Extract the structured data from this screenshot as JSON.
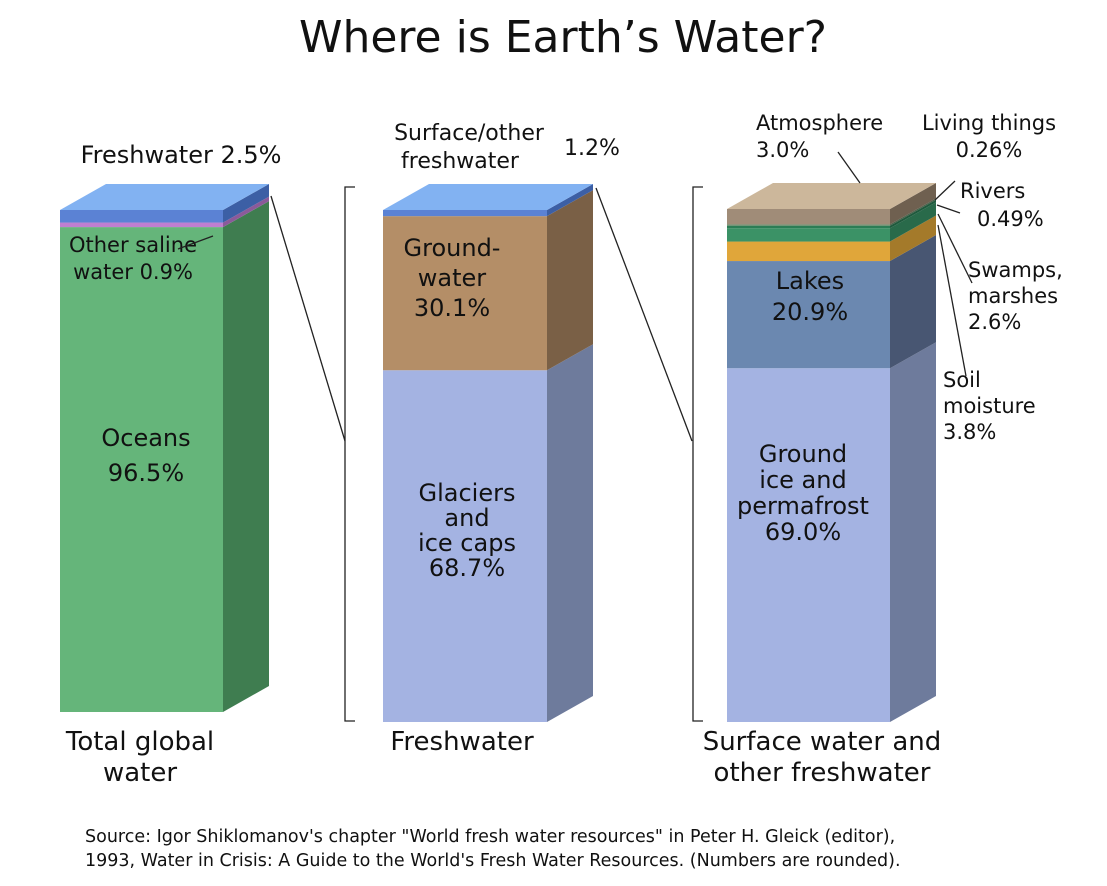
{
  "chart_data": {
    "type": "bar",
    "title": "Where is Earth’s Water?",
    "grid": false,
    "stacks": [
      {
        "id": "total",
        "xlabel_lines": [
          "Total global",
          "water"
        ],
        "segments": [
          {
            "name": "Oceans",
            "value": 96.5,
            "color": "#65b57a",
            "side": "#3f7d50",
            "top": "#86d39b",
            "label_lines": [
              "Oceans",
              "96.5%"
            ]
          },
          {
            "name": "Other saline water",
            "value": 0.9,
            "color": "#bf7fd0",
            "side": "#8b5a9a",
            "top": "#d9a6e6",
            "label_lines": [
              "Other saline",
              "water 0.9%"
            ]
          },
          {
            "name": "Freshwater",
            "value": 2.5,
            "color": "#5b82d4",
            "side": "#3c5fa5",
            "top": "#82b2f2",
            "label_lines": [
              "Freshwater 2.5%"
            ]
          }
        ]
      },
      {
        "id": "fresh",
        "xlabel_lines": [
          "Freshwater"
        ],
        "segments": [
          {
            "name": "Glaciers and ice caps",
            "value": 68.7,
            "color": "#a4b3e2",
            "side": "#6e7b9c",
            "top": "#c2ccee",
            "label_lines": [
              "Glaciers",
              "and",
              "ice caps",
              "68.7%"
            ]
          },
          {
            "name": "Ground-water",
            "value": 30.1,
            "color": "#b48e67",
            "side": "#7a6046",
            "top": "#c9a684",
            "label_lines": [
              "Ground-",
              "water",
              "30.1%"
            ]
          },
          {
            "name": "Surface/other freshwater",
            "value": 1.2,
            "color": "#5b82d4",
            "side": "#3c5fa5",
            "top": "#82b2f2",
            "label_lines": [
              "Surface/other",
              "freshwater",
              "1.2%"
            ]
          }
        ]
      },
      {
        "id": "surface",
        "xlabel_lines": [
          "Surface water and",
          "other freshwater"
        ],
        "segments": [
          {
            "name": "Ground ice and permafrost",
            "value": 69.0,
            "color": "#a4b3e2",
            "side": "#6e7b9c",
            "top": "#c2ccee",
            "label_lines": [
              "Ground",
              "ice and",
              "permafrost",
              "69.0%"
            ]
          },
          {
            "name": "Lakes",
            "value": 20.9,
            "color": "#6b88b0",
            "side": "#485672",
            "top": "#8aa4c8",
            "label_lines": [
              "Lakes",
              "20.9%"
            ]
          },
          {
            "name": "Soil moisture",
            "value": 3.8,
            "color": "#e0a63a",
            "side": "#a47a2a",
            "top": "#efc066",
            "label_lines": [
              "Soil",
              "moisture",
              "3.8%"
            ]
          },
          {
            "name": "Swamps, marshes",
            "value": 2.6,
            "color": "#3b9266",
            "side": "#296a4a",
            "top": "#5cb087",
            "label_lines": [
              "Swamps,",
              "marshes",
              "2.6%"
            ]
          },
          {
            "name": "Rivers",
            "value": 0.49,
            "color": "#2c7d55",
            "side": "#1f5a3d",
            "top": "#4e9d74",
            "label_lines": [
              "Rivers",
              "0.49%"
            ]
          },
          {
            "name": "Living things",
            "value": 0.26,
            "color": "#6a8a6a",
            "side": "#4a604a",
            "top": "#8aa88a",
            "label_lines": [
              "Living things",
              "0.26%"
            ]
          },
          {
            "name": "Atmosphere",
            "value": 3.0,
            "color": "#a08c78",
            "side": "#6f6050",
            "top": "#ccb79b",
            "label_lines": [
              "Atmosphere",
              "3.0%"
            ]
          }
        ]
      }
    ],
    "source_lines": [
      "Source: Igor Shiklomanov's chapter \"World fresh water resources\" in Peter H. Gleick (editor),",
      "1993, Water in Crisis: A Guide to the World's Fresh Water Resources. (Numbers are rounded)."
    ]
  }
}
